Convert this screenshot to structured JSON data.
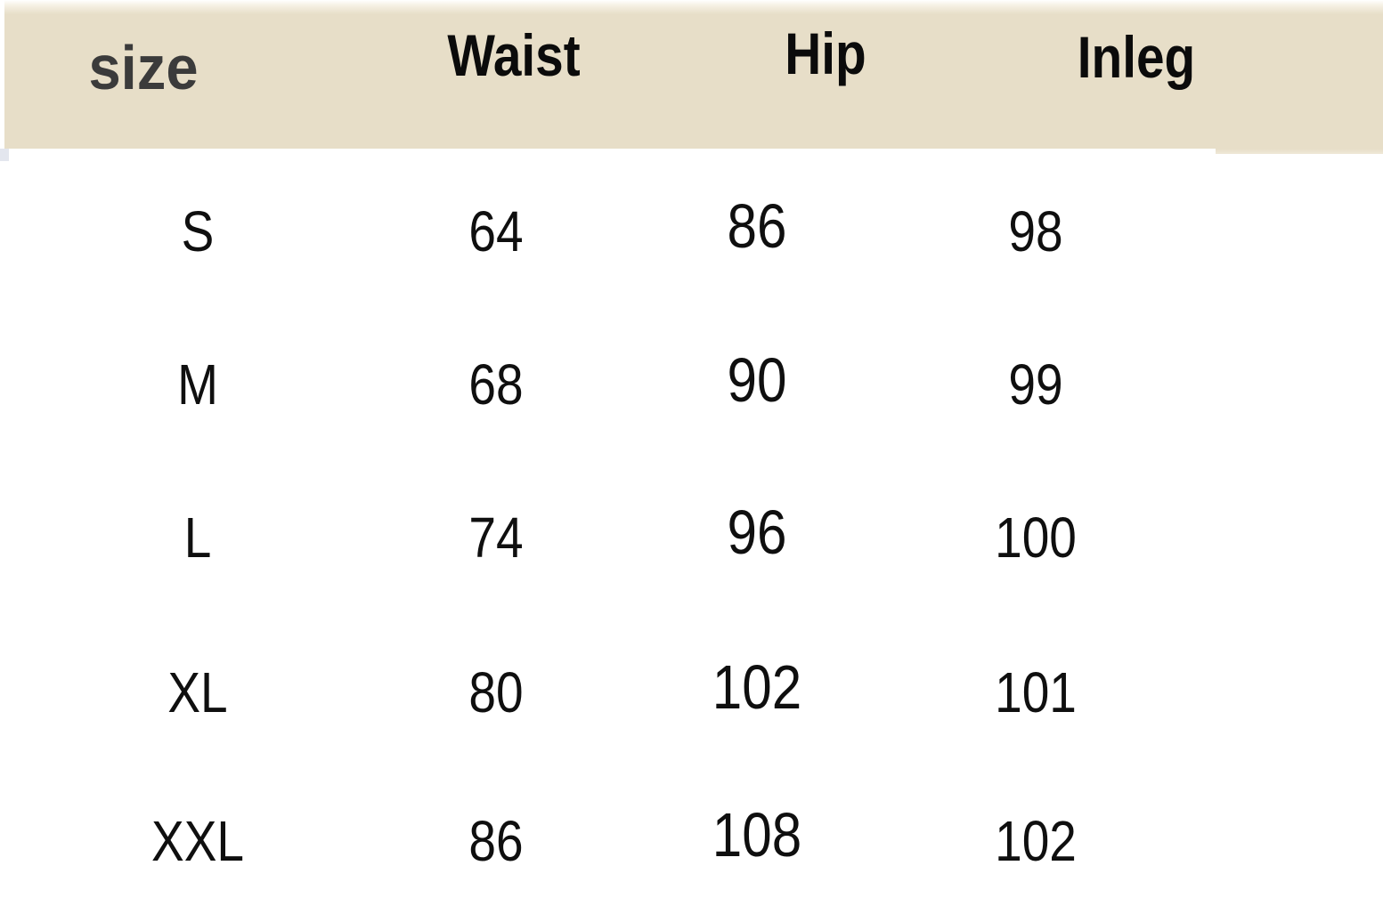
{
  "table": {
    "columns": [
      {
        "key": "size",
        "label": "size"
      },
      {
        "key": "waist",
        "label": "Waist"
      },
      {
        "key": "hip",
        "label": "Hip"
      },
      {
        "key": "inleg",
        "label": "Inleg"
      }
    ],
    "rows": [
      {
        "size": "S",
        "waist": "64",
        "hip": "86",
        "inleg": "98"
      },
      {
        "size": "M",
        "waist": "68",
        "hip": "90",
        "inleg": "99"
      },
      {
        "size": "L",
        "waist": "74",
        "hip": "96",
        "inleg": "100"
      },
      {
        "size": "XL",
        "waist": "80",
        "hip": "102",
        "inleg": "101"
      },
      {
        "size": "XXL",
        "waist": "86",
        "hip": "108",
        "inleg": "102"
      }
    ]
  },
  "colors": {
    "header_band": "#e7dec8",
    "header_size_text": "#3b3b3b",
    "header_text": "#0b0b0b",
    "body_text": "#0f0f0f",
    "background": "#ffffff"
  },
  "chart_data": {
    "type": "table",
    "title": "",
    "columns": [
      "size",
      "Waist",
      "Hip",
      "Inleg"
    ],
    "rows": [
      [
        "S",
        64,
        86,
        98
      ],
      [
        "M",
        68,
        90,
        99
      ],
      [
        "L",
        74,
        96,
        100
      ],
      [
        "XL",
        80,
        102,
        101
      ],
      [
        "XXL",
        86,
        108,
        102
      ]
    ],
    "layout_hints": {
      "header_background": "#e7dec8",
      "body_background": "#ffffff",
      "grid": false
    }
  }
}
